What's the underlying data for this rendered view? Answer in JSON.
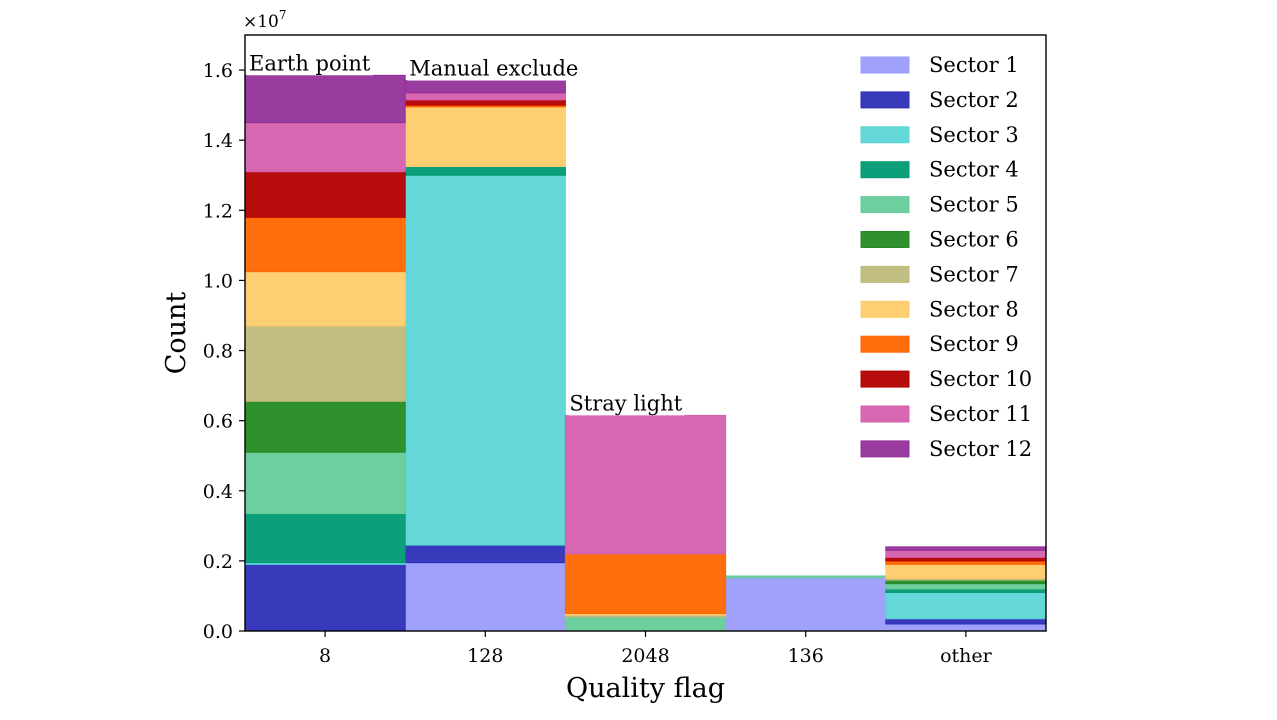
{
  "chart_data": {
    "type": "bar",
    "stacked": true,
    "xlabel": "Quality flag",
    "ylabel": "Count",
    "y_multiplier_label": "×10",
    "y_multiplier_exponent": "7",
    "y_scale": 10000000,
    "ylim": [
      0,
      17000000
    ],
    "y_ticks": [
      0,
      2000000,
      4000000,
      6000000,
      8000000,
      10000000,
      12000000,
      14000000,
      16000000
    ],
    "y_tick_labels": [
      "0.0",
      "0.2",
      "0.4",
      "0.6",
      "0.8",
      "1.0",
      "1.2",
      "1.4",
      "1.6"
    ],
    "categories": [
      "8",
      "128",
      "2048",
      "136",
      "other"
    ],
    "legend_position": "top-right",
    "grid": false,
    "annotations": [
      {
        "text": "Earth point",
        "category": "8"
      },
      {
        "text": "Manual exclude",
        "category": "128"
      },
      {
        "text": "Stray light",
        "category": "2048"
      }
    ],
    "series": [
      {
        "name": "Sector 1",
        "color": "#9b9cfb",
        "values": [
          0,
          1950000,
          0,
          1520000,
          200000
        ]
      },
      {
        "name": "Sector 2",
        "color": "#2e2eb8",
        "values": [
          1900000,
          500000,
          0,
          0,
          150000
        ]
      },
      {
        "name": "Sector 3",
        "color": "#5cd6d6",
        "values": [
          50000,
          10550000,
          0,
          0,
          750000
        ]
      },
      {
        "name": "Sector 4",
        "color": "#009a72",
        "values": [
          1400000,
          250000,
          0,
          0,
          100000
        ]
      },
      {
        "name": "Sector 5",
        "color": "#66cc99",
        "values": [
          1750000,
          0,
          400000,
          50000,
          150000
        ]
      },
      {
        "name": "Sector 6",
        "color": "#238b23",
        "values": [
          1450000,
          0,
          0,
          0,
          100000
        ]
      },
      {
        "name": "Sector 7",
        "color": "#bdbb79",
        "values": [
          2150000,
          0,
          50000,
          0,
          50000
        ]
      },
      {
        "name": "Sector 8",
        "color": "#fecb6a",
        "values": [
          1550000,
          1700000,
          50000,
          0,
          400000
        ]
      },
      {
        "name": "Sector 9",
        "color": "#ff6600",
        "values": [
          1550000,
          50000,
          1700000,
          0,
          100000
        ]
      },
      {
        "name": "Sector 10",
        "color": "#b30000",
        "values": [
          1300000,
          150000,
          0,
          0,
          100000
        ]
      },
      {
        "name": "Sector 11",
        "color": "#d55fad",
        "values": [
          1400000,
          200000,
          3950000,
          0,
          200000
        ]
      },
      {
        "name": "Sector 12",
        "color": "#94309a",
        "values": [
          1350000,
          350000,
          0,
          0,
          100000
        ]
      }
    ]
  }
}
